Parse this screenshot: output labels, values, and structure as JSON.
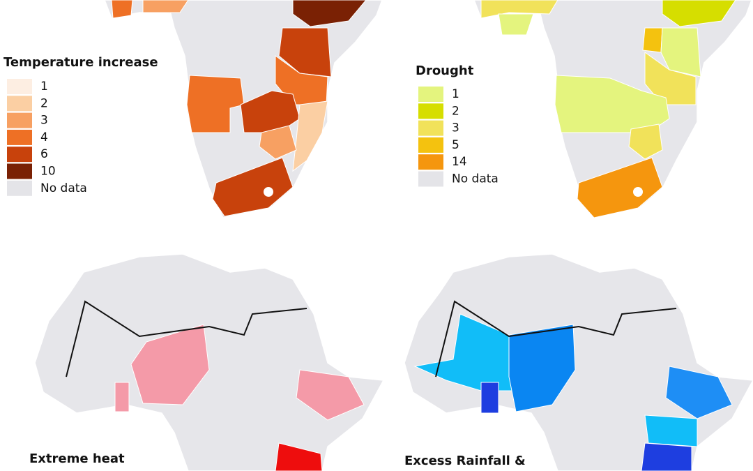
{
  "panels": [
    {
      "legend": {
        "title": "Temperature increase",
        "items": [
          {
            "label": "1",
            "color": "#fdeee2"
          },
          {
            "label": "2",
            "color": "#fbcfa3"
          },
          {
            "label": "3",
            "color": "#f7a062"
          },
          {
            "label": "4",
            "color": "#ee7025"
          },
          {
            "label": "6",
            "color": "#c8420c"
          },
          {
            "label": "10",
            "color": "#7a2104"
          },
          {
            "label": "No data",
            "color": "#e4e4e8"
          }
        ]
      }
    },
    {
      "legend": {
        "title": "Drought",
        "items": [
          {
            "label": "1",
            "color": "#e4f47e"
          },
          {
            "label": "2",
            "color": "#d6de00"
          },
          {
            "label": "3",
            "color": "#f1e25a"
          },
          {
            "label": "5",
            "color": "#f4c20f"
          },
          {
            "label": "14",
            "color": "#f5960e"
          },
          {
            "label": "No data",
            "color": "#e4e4e8"
          }
        ]
      }
    },
    {
      "legend": {
        "title": "Extreme heat"
      }
    },
    {
      "legend": {
        "title": "Excess Rainfall &"
      }
    }
  ]
}
